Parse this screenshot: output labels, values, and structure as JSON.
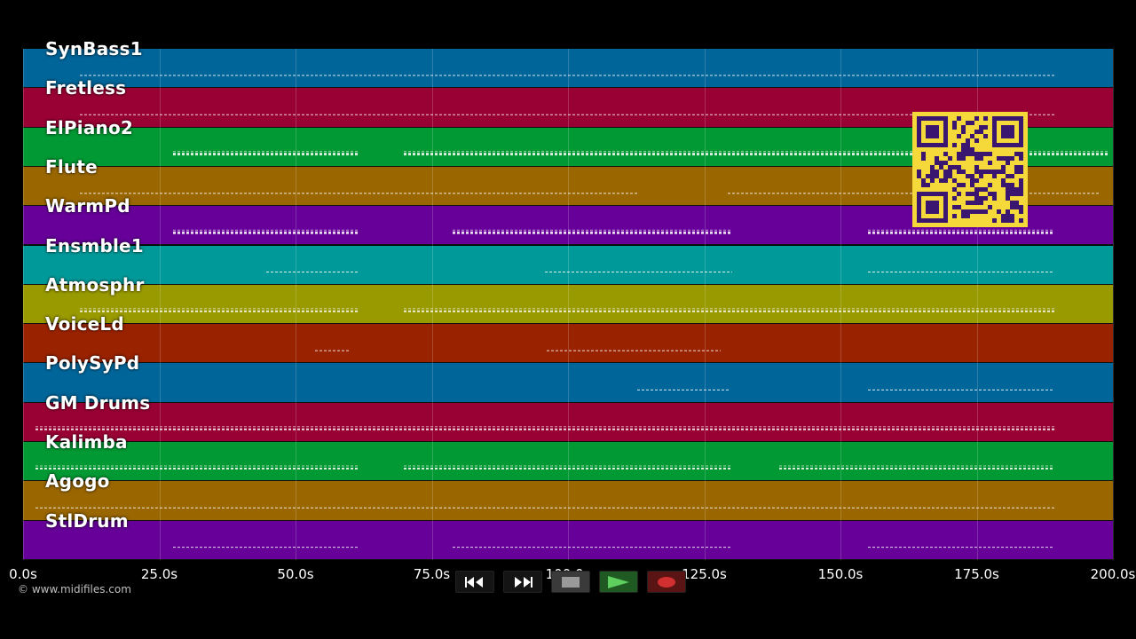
{
  "tracks": [
    {
      "name": "SynBass1",
      "color": "#006599"
    },
    {
      "name": "Fretless",
      "color": "#990033"
    },
    {
      "name": "ElPiano2",
      "color": "#009933"
    },
    {
      "name": "Flute",
      "color": "#996600"
    },
    {
      "name": "WarmPd",
      "color": "#660099"
    },
    {
      "name": "Ensmble1",
      "color": "#009999"
    },
    {
      "name": "Atmosphr",
      "color": "#999900"
    },
    {
      "name": "VoiceLd",
      "color": "#992200"
    },
    {
      "name": "PolySyPd",
      "color": "#006599"
    },
    {
      "name": "GM Drums",
      "color": "#990033"
    },
    {
      "name": "Kalimba",
      "color": "#009933"
    },
    {
      "name": "Agogo",
      "color": "#996600"
    },
    {
      "name": "StlDrum",
      "color": "#660099"
    }
  ],
  "timeline": {
    "ticks": [
      "0.0s",
      "25.0s",
      "50.0s",
      "75.0s",
      "100.0s",
      "125.0s",
      "150.0s",
      "175.0s",
      "200.0s"
    ]
  },
  "credit": "© www.midifiles.com",
  "transport": {
    "rewind_icon": "rewind-icon",
    "forward_icon": "fast-forward-icon",
    "stop_icon": "stop-icon",
    "play_icon": "play-icon",
    "record_icon": "record-icon"
  },
  "colors": {
    "background": "#000000",
    "qr_background": "#f5d83a",
    "qr_foreground": "#3b1670"
  }
}
